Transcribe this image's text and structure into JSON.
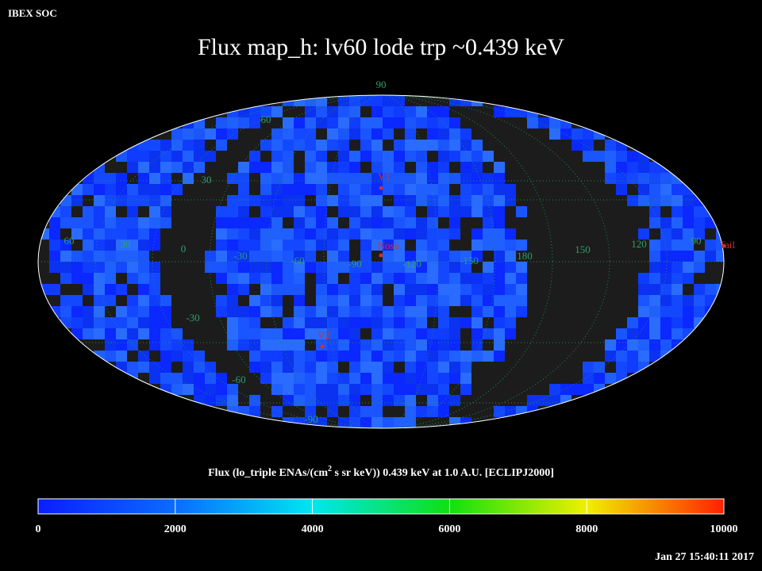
{
  "header": {
    "source": "IBEX SOC",
    "title": "Flux   map_h: lv60 lode trp ~0.439 keV",
    "timestamp": "Jan 27 15:40:11 2017"
  },
  "map": {
    "longitude_labels": [
      "60",
      "30",
      "0",
      "-30",
      "-60",
      "-90",
      "-120",
      "-150",
      "180",
      "150",
      "120",
      "90"
    ],
    "latitude_labels": [
      "90",
      "60",
      "30",
      "-30",
      "-60",
      "-90"
    ],
    "markers": [
      "V1",
      "Nose",
      "V2",
      "Tail"
    ]
  },
  "colorbar": {
    "label_parts": [
      "Flux (lo_triple ENAs/(cm",
      "2",
      " s sr keV))  0.439 keV at 1.0 A.U. [ECLIPJ2000]"
    ],
    "range": [
      0,
      10000
    ],
    "ticks": [
      0,
      2000,
      4000,
      6000,
      8000,
      10000
    ]
  }
}
